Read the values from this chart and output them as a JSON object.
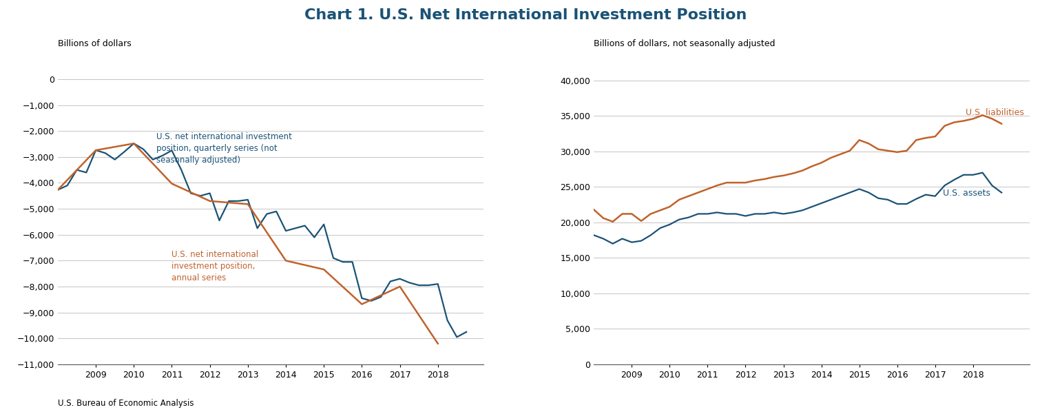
{
  "title": "Chart 1. U.S. Net International Investment Position",
  "title_color": "#1A5276",
  "title_fontsize": 16,
  "background_color": "#ffffff",
  "left_ylabel": "Billions of dollars",
  "right_ylabel": "Billions of dollars, not seasonally adjusted",
  "left_ylim": [
    -11000,
    500
  ],
  "left_yticks": [
    0,
    -1000,
    -2000,
    -3000,
    -4000,
    -5000,
    -6000,
    -7000,
    -8000,
    -9000,
    -10000,
    -11000
  ],
  "right_ylim": [
    0,
    42000
  ],
  "right_yticks": [
    0,
    5000,
    10000,
    15000,
    20000,
    25000,
    30000,
    35000,
    40000
  ],
  "blue_color": "#1A5276",
  "orange_color": "#C0622B",
  "annual_x": [
    2008.0,
    2009.0,
    2010.0,
    2011.0,
    2012.0,
    2013.0,
    2014.0,
    2015.0,
    2016.0,
    2017.0,
    2018.0
  ],
  "annual_y": [
    -4270,
    -2740,
    -2480,
    -4030,
    -4700,
    -4820,
    -7000,
    -7340,
    -8680,
    -8000,
    -10200
  ],
  "quarterly_x": [
    2008.0,
    2008.25,
    2008.5,
    2008.75,
    2009.0,
    2009.25,
    2009.5,
    2009.75,
    2010.0,
    2010.25,
    2010.5,
    2010.75,
    2011.0,
    2011.25,
    2011.5,
    2011.75,
    2012.0,
    2012.25,
    2012.5,
    2012.75,
    2013.0,
    2013.25,
    2013.5,
    2013.75,
    2014.0,
    2014.25,
    2014.5,
    2014.75,
    2015.0,
    2015.25,
    2015.5,
    2015.75,
    2016.0,
    2016.25,
    2016.5,
    2016.75,
    2017.0,
    2017.25,
    2017.5,
    2017.75,
    2018.0,
    2018.25,
    2018.5,
    2018.75
  ],
  "quarterly_y": [
    -4270,
    -4100,
    -3500,
    -3600,
    -2740,
    -2850,
    -3100,
    -2800,
    -2480,
    -2700,
    -3100,
    -2950,
    -2750,
    -3500,
    -4400,
    -4500,
    -4400,
    -5450,
    -4700,
    -4700,
    -4650,
    -5750,
    -5200,
    -5100,
    -5850,
    -5750,
    -5650,
    -6100,
    -5600,
    -6900,
    -7050,
    -7050,
    -8450,
    -8550,
    -8400,
    -7800,
    -7700,
    -7850,
    -7950,
    -7950,
    -7900,
    -9300,
    -9950,
    -9750
  ],
  "liabilities_x": [
    2008.0,
    2008.25,
    2008.5,
    2008.75,
    2009.0,
    2009.25,
    2009.5,
    2009.75,
    2010.0,
    2010.25,
    2010.5,
    2010.75,
    2011.0,
    2011.25,
    2011.5,
    2011.75,
    2012.0,
    2012.25,
    2012.5,
    2012.75,
    2013.0,
    2013.25,
    2013.5,
    2013.75,
    2014.0,
    2014.25,
    2014.5,
    2014.75,
    2015.0,
    2015.25,
    2015.5,
    2015.75,
    2016.0,
    2016.25,
    2016.5,
    2016.75,
    2017.0,
    2017.25,
    2017.5,
    2017.75,
    2018.0,
    2018.25,
    2018.5,
    2018.75
  ],
  "liabilities_y": [
    21800,
    20600,
    20100,
    21200,
    21200,
    20200,
    21200,
    21700,
    22200,
    23200,
    23700,
    24200,
    24700,
    25200,
    25600,
    25600,
    25600,
    25900,
    26100,
    26400,
    26600,
    26900,
    27300,
    27900,
    28400,
    29100,
    29600,
    30100,
    31600,
    31100,
    30300,
    30100,
    29900,
    30100,
    31600,
    31900,
    32100,
    33600,
    34100,
    34300,
    34600,
    35100,
    34600,
    33900
  ],
  "assets_x": [
    2008.0,
    2008.25,
    2008.5,
    2008.75,
    2009.0,
    2009.25,
    2009.5,
    2009.75,
    2010.0,
    2010.25,
    2010.5,
    2010.75,
    2011.0,
    2011.25,
    2011.5,
    2011.75,
    2012.0,
    2012.25,
    2012.5,
    2012.75,
    2013.0,
    2013.25,
    2013.5,
    2013.75,
    2014.0,
    2014.25,
    2014.5,
    2014.75,
    2015.0,
    2015.25,
    2015.5,
    2015.75,
    2016.0,
    2016.25,
    2016.5,
    2016.75,
    2017.0,
    2017.25,
    2017.5,
    2017.75,
    2018.0,
    2018.25,
    2018.5,
    2018.75
  ],
  "assets_y": [
    18200,
    17700,
    17000,
    17700,
    17200,
    17400,
    18200,
    19200,
    19700,
    20400,
    20700,
    21200,
    21200,
    21400,
    21200,
    21200,
    20900,
    21200,
    21200,
    21400,
    21200,
    21400,
    21700,
    22200,
    22700,
    23200,
    23700,
    24200,
    24700,
    24200,
    23400,
    23200,
    22600,
    22600,
    23300,
    23900,
    23700,
    25200,
    26000,
    26700,
    26700,
    27000,
    25200,
    24200
  ],
  "left_annotation_text": "U.S. net international investment\nposition, quarterly series (not\nseasonally adjusted)",
  "left_annotation2_text": "U.S. net international\ninvestment position,\nannual series",
  "right_annotation_liabilities": "U.S. liabilities",
  "right_annotation_assets": "U.S. assets",
  "xtick_years": [
    2009,
    2010,
    2011,
    2012,
    2013,
    2014,
    2015,
    2016,
    2017,
    2018
  ],
  "xlim_left": [
    2008.0,
    2019.2
  ],
  "xlim_right": [
    2008.0,
    2019.5
  ]
}
